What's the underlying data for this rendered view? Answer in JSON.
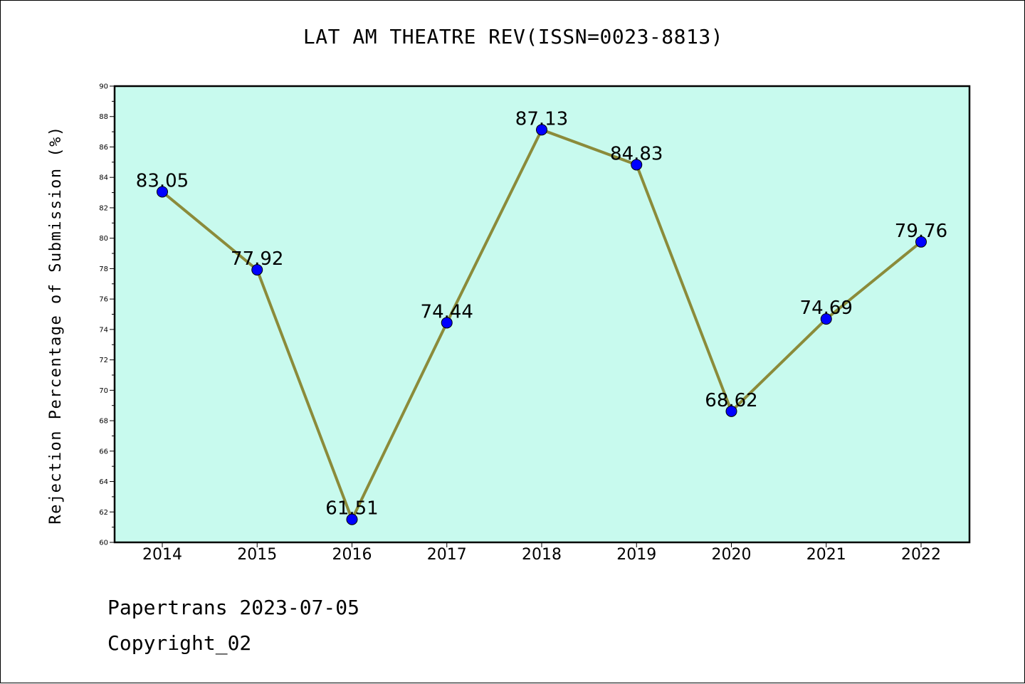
{
  "chart_data": {
    "type": "line",
    "title": "LAT AM THEATRE REV(ISSN=0023-8813)",
    "xlabel": "",
    "ylabel": "Rejection Percentage of Submission (%)",
    "categories": [
      "2014",
      "2015",
      "2016",
      "2017",
      "2018",
      "2019",
      "2020",
      "2021",
      "2022"
    ],
    "series": [
      {
        "values": [
          83.05,
          77.92,
          61.51,
          74.44,
          87.13,
          84.83,
          68.62,
          74.69,
          79.76
        ],
        "labels": [
          "83.05",
          "77.92",
          "61.51",
          "74.44",
          "87.13",
          "84.83",
          "68.62",
          "74.69",
          "79.76"
        ]
      }
    ],
    "ylim": [
      60,
      90
    ],
    "yticks": [
      "60",
      "62",
      "64",
      "66",
      "68",
      "70",
      "72",
      "74",
      "76",
      "78",
      "80",
      "82",
      "84",
      "86",
      "88",
      "90"
    ],
    "grid": false,
    "legend": "none",
    "colors": {
      "plot_background": "#c8faee",
      "line": "#8b8b3a",
      "marker": "#0000ff",
      "axes": "#000000"
    }
  },
  "footer": {
    "line1": "Papertrans 2023-07-05",
    "line2": "Copyright_02"
  }
}
